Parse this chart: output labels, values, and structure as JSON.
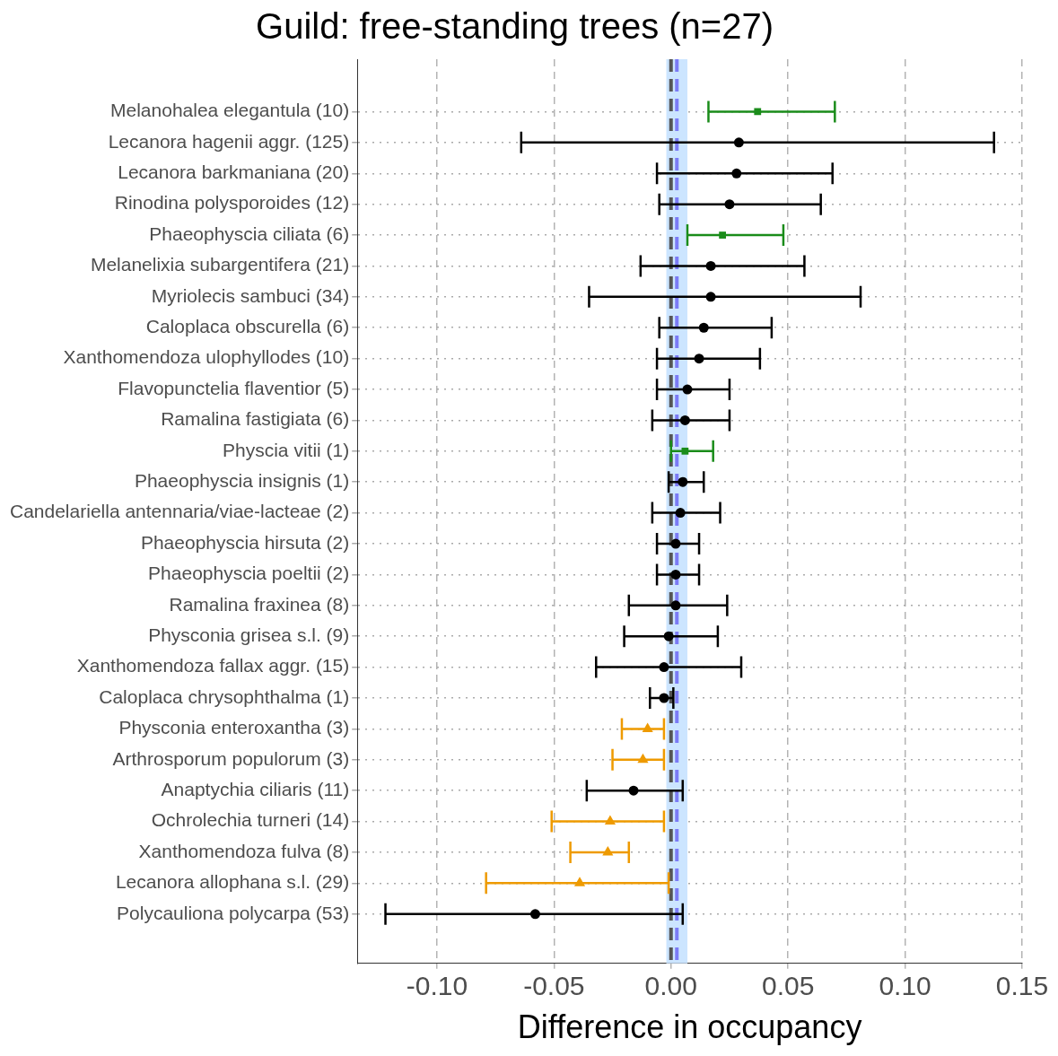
{
  "chart_data": {
    "type": "scatter",
    "orientation": "horizontal",
    "title": "Guild: free-standing trees (n=27)",
    "xlabel": "Difference in occupancy",
    "categories": [
      "Melanohalea elegantula (10)",
      "Lecanora hagenii aggr. (125)",
      "Lecanora barkmaniana (20)",
      "Rinodina polysporoides (12)",
      "Phaeophyscia ciliata (6)",
      "Melanelixia subargentifera (21)",
      "Myriolecis sambuci (34)",
      "Caloplaca obscurella (6)",
      "Xanthomendoza ulophyllodes (10)",
      "Flavopunctelia flaventior (5)",
      "Ramalina fastigiata (6)",
      "Physcia vitii (1)",
      "Phaeophyscia insignis (1)",
      "Candelariella antennaria/viae-lacteae (2)",
      "Phaeophyscia hirsuta (2)",
      "Phaeophyscia poeltii (2)",
      "Ramalina fraxinea (8)",
      "Physconia grisea s.l. (9)",
      "Xanthomendoza fallax aggr. (15)",
      "Caloplaca chrysophthalma (1)",
      "Physconia enteroxantha (3)",
      "Arthrosporum populorum (3)",
      "Anaptychia ciliaris (11)",
      "Ochrolechia turneri (14)",
      "Xanthomendoza fulva (8)",
      "Lecanora allophana s.l. (29)",
      "Polycauliona polycarpa (53)"
    ],
    "series": [
      {
        "color": "#000000",
        "marker": "circle",
        "values": [
          null,
          0.029,
          0.028,
          0.025,
          null,
          0.017,
          0.017,
          0.014,
          0.012,
          0.007,
          0.006,
          null,
          0.005,
          0.004,
          0.002,
          0.002,
          0.002,
          -0.001,
          -0.003,
          -0.003,
          null,
          null,
          -0.016,
          null,
          null,
          null,
          -0.058
        ],
        "errors": [
          null,
          [
            -0.064,
            0.138
          ],
          [
            -0.006,
            0.069
          ],
          [
            -0.005,
            0.064
          ],
          null,
          [
            -0.013,
            0.057
          ],
          [
            -0.035,
            0.081
          ],
          [
            -0.005,
            0.043
          ],
          [
            -0.006,
            0.038
          ],
          [
            -0.006,
            0.025
          ],
          [
            -0.008,
            0.025
          ],
          null,
          [
            -0.001,
            0.014
          ],
          [
            -0.008,
            0.021
          ],
          [
            -0.006,
            0.012
          ],
          [
            -0.006,
            0.012
          ],
          [
            -0.018,
            0.024
          ],
          [
            -0.02,
            0.02
          ],
          [
            -0.032,
            0.03
          ],
          [
            -0.009,
            0.001
          ],
          null,
          null,
          [
            -0.036,
            0.005
          ],
          null,
          null,
          null,
          [
            -0.122,
            0.005
          ]
        ]
      },
      {
        "color": "#1a8c1a",
        "marker": "square",
        "values": [
          0.037,
          null,
          null,
          null,
          0.022,
          null,
          null,
          null,
          null,
          null,
          null,
          0.006,
          null,
          null,
          null,
          null,
          null,
          null,
          null,
          null,
          null,
          null,
          null,
          null,
          null,
          null,
          null
        ],
        "errors": [
          [
            0.016,
            0.07
          ],
          null,
          null,
          null,
          [
            0.007,
            0.048
          ],
          null,
          null,
          null,
          null,
          null,
          null,
          [
            0.0,
            0.018
          ],
          null,
          null,
          null,
          null,
          null,
          null,
          null,
          null,
          null,
          null,
          null,
          null,
          null,
          null,
          null
        ]
      },
      {
        "color": "#ee9a00",
        "marker": "triangle",
        "values": [
          null,
          null,
          null,
          null,
          null,
          null,
          null,
          null,
          null,
          null,
          null,
          null,
          null,
          null,
          null,
          null,
          null,
          null,
          null,
          null,
          -0.01,
          -0.012,
          null,
          -0.026,
          -0.027,
          -0.039,
          null
        ],
        "errors": [
          null,
          null,
          null,
          null,
          null,
          null,
          null,
          null,
          null,
          null,
          null,
          null,
          null,
          null,
          null,
          null,
          null,
          null,
          null,
          null,
          [
            -0.021,
            -0.003
          ],
          [
            -0.025,
            -0.003
          ],
          null,
          [
            -0.051,
            -0.003
          ],
          [
            -0.043,
            -0.018
          ],
          [
            -0.079,
            -0.001
          ],
          null
        ]
      }
    ],
    "xlim": [
      -0.134,
      0.15
    ],
    "xticks": [
      {
        "value": -0.1,
        "label": "-0.10"
      },
      {
        "value": -0.05,
        "label": "-0.05"
      },
      {
        "value": 0,
        "label": "0.00"
      },
      {
        "value": 0.05,
        "label": "0.05"
      },
      {
        "value": 0.1,
        "label": "0.10"
      },
      {
        "value": 0.15,
        "label": "0.15"
      }
    ],
    "grid": true,
    "legend": false,
    "bands": [
      {
        "axis": "x",
        "from": -0.002,
        "to": 0.007,
        "color": "#cce5ff"
      }
    ],
    "ref_lines": [
      {
        "axis": "x",
        "value": 0,
        "color": "#555555",
        "line_style": "dashed"
      },
      {
        "axis": "x",
        "value": 0.0025,
        "color": "#7b7bf5",
        "line_style": "dashed"
      }
    ]
  }
}
